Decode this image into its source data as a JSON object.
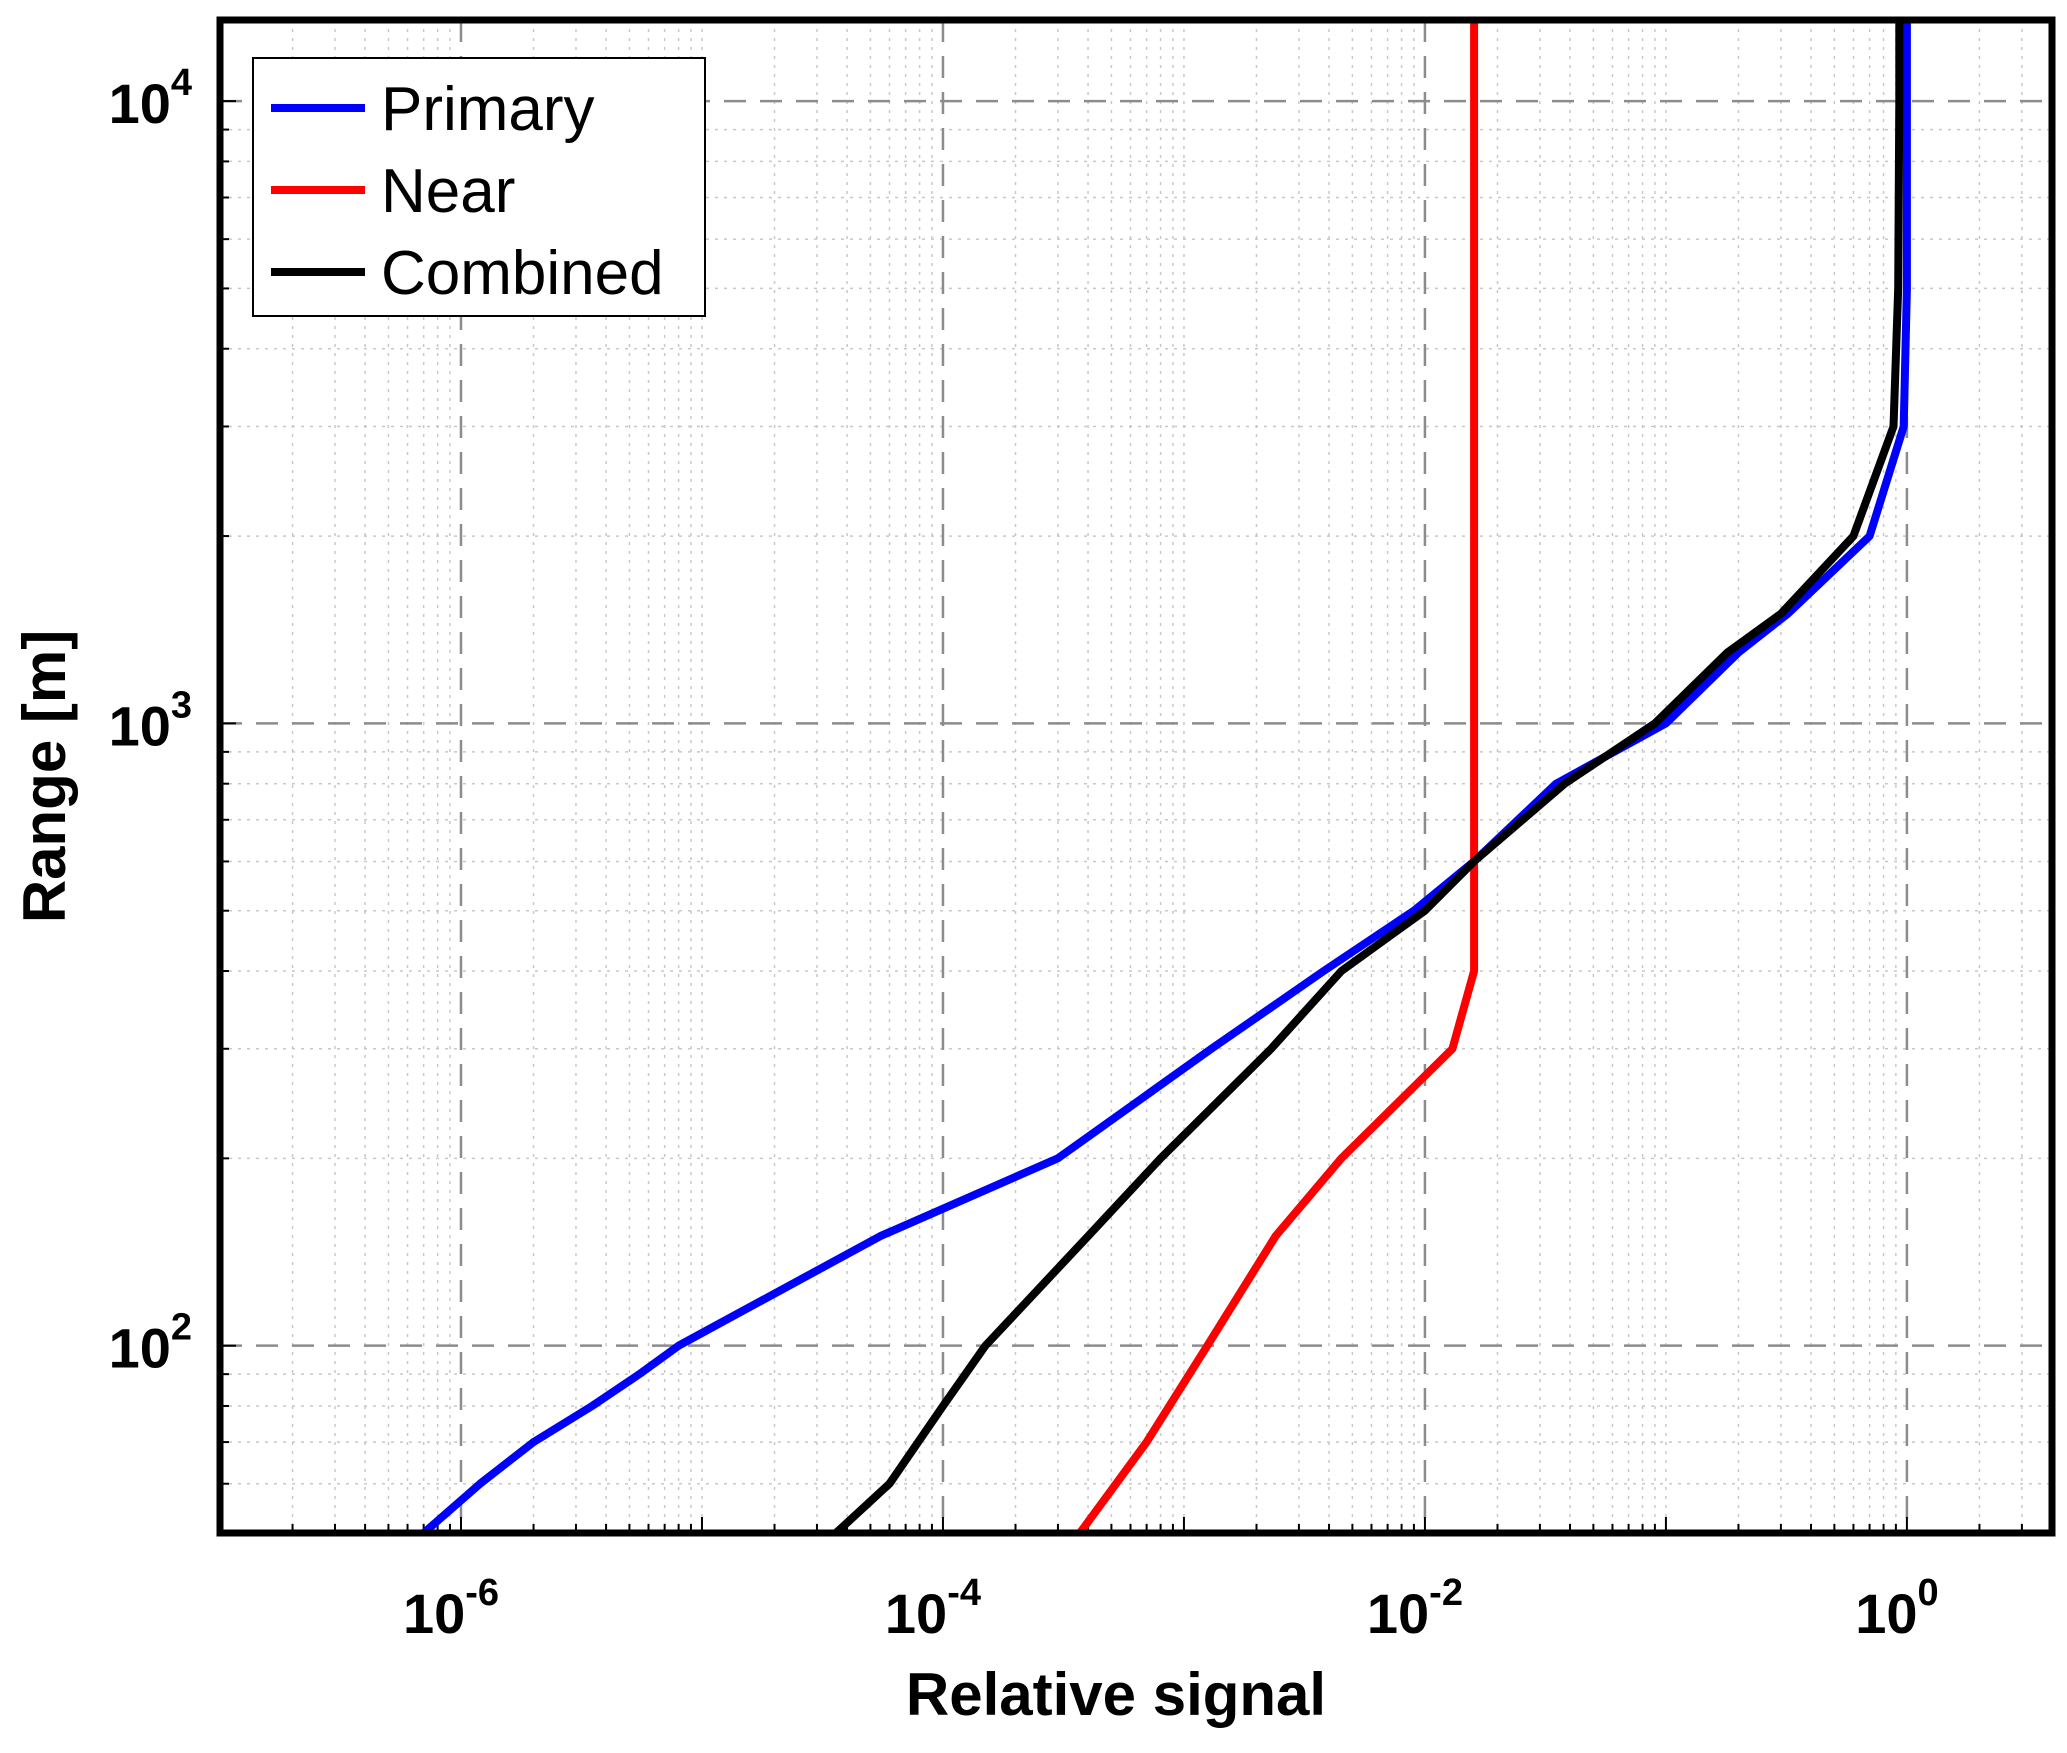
{
  "chart_data": {
    "type": "line",
    "title": "",
    "xlabel": "Relative signal",
    "ylabel": "Range [m]",
    "xscale": "log",
    "yscale": "log",
    "xlim": [
      1e-07,
      4
    ],
    "ylim": [
      50,
      13500
    ],
    "xticks": [
      {
        "base": "10",
        "exp": "-6",
        "value": 1e-06
      },
      {
        "base": "10",
        "exp": "-4",
        "value": 0.0001
      },
      {
        "base": "10",
        "exp": "-2",
        "value": 0.01
      },
      {
        "base": "10",
        "exp": "0",
        "value": 1
      }
    ],
    "yticks": [
      {
        "base": "10",
        "exp": "2",
        "value": 100
      },
      {
        "base": "10",
        "exp": "3",
        "value": 1000
      },
      {
        "base": "10",
        "exp": "4",
        "value": 10000
      }
    ],
    "grid": true,
    "legend": "top-left",
    "series": [
      {
        "name": "Primary",
        "color": "#0000ff",
        "points": [
          [
            7e-07,
            50
          ],
          [
            1.2e-06,
            60
          ],
          [
            2e-06,
            70
          ],
          [
            3.5e-06,
            80
          ],
          [
            5.5e-06,
            90
          ],
          [
            8e-06,
            100
          ],
          [
            5.5e-05,
            150
          ],
          [
            0.0003,
            200
          ],
          [
            0.0013,
            300
          ],
          [
            0.0038,
            400
          ],
          [
            0.009,
            500
          ],
          [
            0.016,
            600
          ],
          [
            0.035,
            800
          ],
          [
            0.1,
            1000
          ],
          [
            0.2,
            1300
          ],
          [
            0.32,
            1500
          ],
          [
            0.7,
            2000
          ],
          [
            0.97,
            3000
          ],
          [
            1.0,
            5000
          ],
          [
            1.0,
            10000
          ],
          [
            1.0,
            13500
          ]
        ]
      },
      {
        "name": "Near",
        "color": "#ff0000",
        "points": [
          [
            0.00037,
            50
          ],
          [
            0.0007,
            70
          ],
          [
            0.00125,
            100
          ],
          [
            0.0024,
            150
          ],
          [
            0.0045,
            200
          ],
          [
            0.013,
            300
          ],
          [
            0.016,
            400
          ],
          [
            0.016,
            600
          ],
          [
            0.016,
            1000
          ],
          [
            0.016,
            10000
          ],
          [
            0.016,
            13500
          ]
        ]
      },
      {
        "name": "Combined",
        "color": "#000000",
        "points": [
          [
            3.6e-05,
            50
          ],
          [
            6e-05,
            60
          ],
          [
            0.0001,
            80
          ],
          [
            0.00015,
            100
          ],
          [
            0.0004,
            150
          ],
          [
            0.0008,
            200
          ],
          [
            0.0023,
            300
          ],
          [
            0.0045,
            400
          ],
          [
            0.01,
            500
          ],
          [
            0.016,
            600
          ],
          [
            0.038,
            800
          ],
          [
            0.09,
            1000
          ],
          [
            0.18,
            1300
          ],
          [
            0.3,
            1500
          ],
          [
            0.6,
            2000
          ],
          [
            0.88,
            3000
          ],
          [
            0.92,
            5000
          ],
          [
            0.93,
            10000
          ],
          [
            0.93,
            13500
          ]
        ]
      }
    ]
  }
}
